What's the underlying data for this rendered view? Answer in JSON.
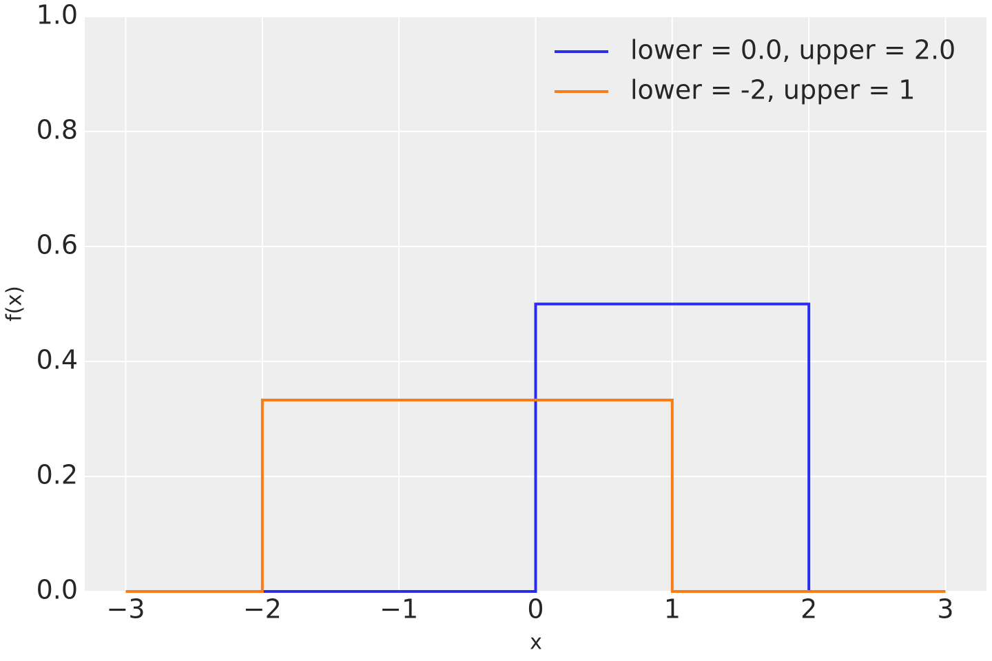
{
  "chart_data": {
    "type": "line",
    "xlabel": "x",
    "ylabel": "f(x)",
    "series": [
      {
        "name": "lower = 0.0, upper = 2.0",
        "color": "#2a2eec",
        "x": [
          -3,
          0,
          0,
          2,
          2,
          3
        ],
        "values": [
          0,
          0,
          0.5,
          0.5,
          0,
          0
        ]
      },
      {
        "name": "lower = -2, upper = 1",
        "color": "#fa7c17",
        "x": [
          -3,
          -2,
          -2,
          1,
          1,
          3
        ],
        "values": [
          0,
          0,
          0.333,
          0.333,
          0,
          0
        ]
      }
    ],
    "xlim": [
      -3.3,
      3.3
    ],
    "xticks": [
      {
        "value": -3,
        "label": "−3"
      },
      {
        "value": -2,
        "label": "−2"
      },
      {
        "value": -1,
        "label": "−1"
      },
      0,
      1,
      2,
      3
    ],
    "ylim": [
      0,
      1
    ],
    "yticks": [
      {
        "value": 0,
        "label": "0.0"
      },
      {
        "value": 0.2,
        "label": "0.2"
      },
      {
        "value": 0.4,
        "label": "0.4"
      },
      {
        "value": 0.6,
        "label": "0.6"
      },
      {
        "value": 0.8,
        "label": "0.8"
      },
      {
        "value": 1,
        "label": "1.0"
      }
    ],
    "grid": true,
    "legend": "upper right"
  }
}
